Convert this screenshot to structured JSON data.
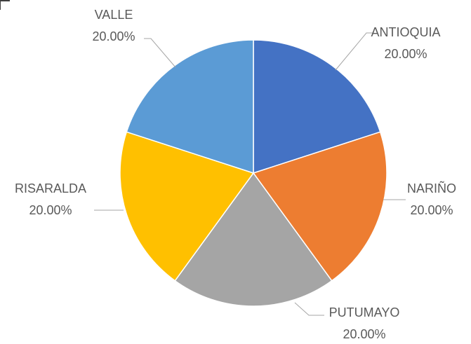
{
  "chart_data": {
    "type": "pie",
    "categories": [
      "ANTIOQUIA",
      "NARIÑO",
      "PUTUMAYO",
      "RISARALDA",
      "VALLE"
    ],
    "values": [
      20,
      20,
      20,
      20,
      20
    ],
    "value_labels": [
      "20.00%",
      "20.00%",
      "20.00%",
      "20.00%",
      "20.00%"
    ],
    "colors": [
      "#4472c4",
      "#ed7d31",
      "#a5a5a5",
      "#ffc000",
      "#5b9bd5"
    ]
  }
}
